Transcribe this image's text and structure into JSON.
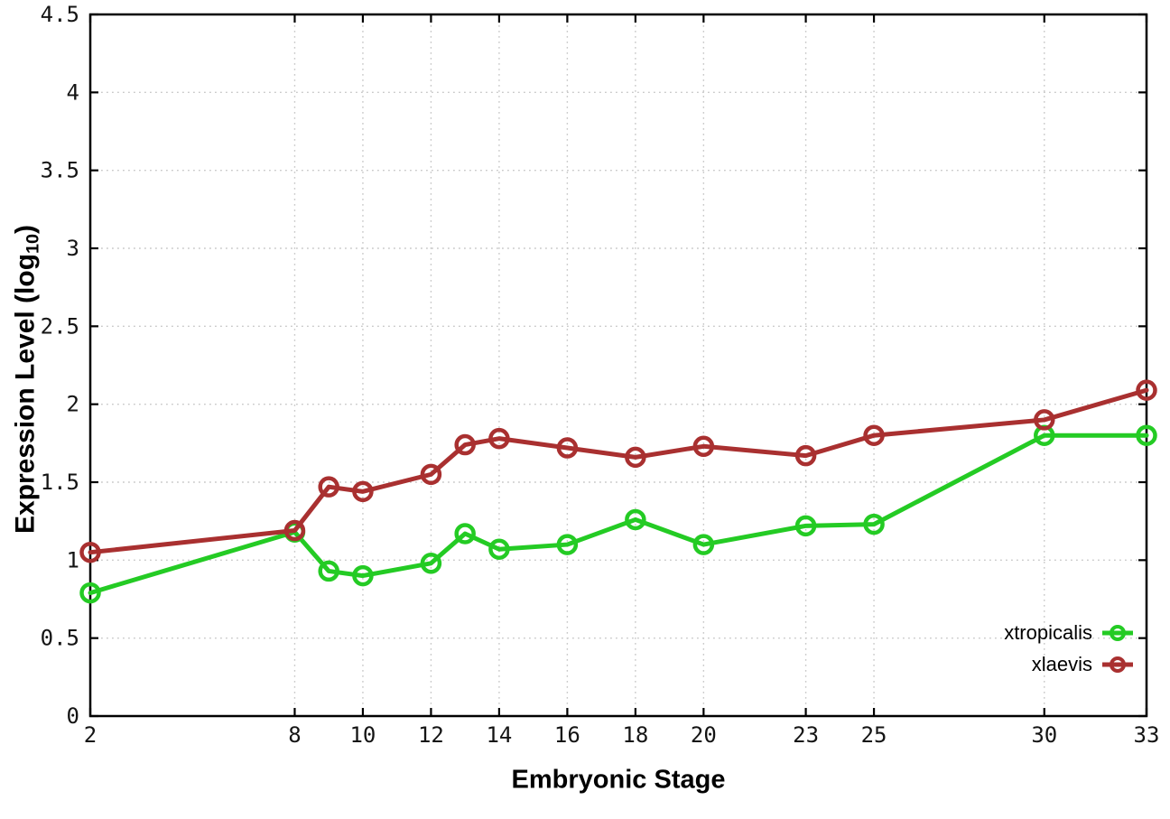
{
  "chart_data": {
    "type": "line",
    "title": "",
    "xlabel": "Embryonic Stage",
    "ylabel": "Expression Level (log10)",
    "ylabel_parts": {
      "pre": "Expression Level (log",
      "sub": "10",
      "post": ")"
    },
    "x": [
      2,
      8,
      9,
      10,
      12,
      13,
      14,
      16,
      18,
      20,
      23,
      25,
      30,
      33
    ],
    "series": [
      {
        "name": "xtropicalis",
        "color": "#24cb24",
        "values": [
          0.79,
          1.18,
          0.93,
          0.9,
          0.98,
          1.17,
          1.07,
          1.1,
          1.26,
          1.1,
          1.22,
          1.23,
          1.8,
          1.8
        ]
      },
      {
        "name": "xlaevis",
        "color": "#a93030",
        "values": [
          1.05,
          1.19,
          1.47,
          1.44,
          1.55,
          1.74,
          1.78,
          1.72,
          1.66,
          1.73,
          1.67,
          1.8,
          1.9,
          2.09
        ]
      }
    ],
    "xticks": {
      "values": [
        2,
        8,
        10,
        12,
        14,
        16,
        18,
        20,
        23,
        25,
        30,
        33
      ],
      "labels": [
        "2",
        "8",
        "10",
        "12",
        "14",
        "16",
        "18",
        "20",
        "23",
        "25",
        "30",
        "33"
      ]
    },
    "yticks": {
      "values": [
        0,
        0.5,
        1,
        1.5,
        2,
        2.5,
        3,
        3.5,
        4,
        4.5
      ],
      "labels": [
        "0",
        "0.5",
        "1",
        "1.5",
        "2",
        "2.5",
        "3",
        "3.5",
        "4",
        "4.5"
      ]
    },
    "xlim": [
      2,
      33
    ],
    "ylim": [
      0,
      4.5
    ],
    "grid": true,
    "legend_position": "bottom-right",
    "axis_color": "#000000",
    "grid_color": "#c9c9c9",
    "tick_label_color": "#141414",
    "background": "#ffffff"
  }
}
